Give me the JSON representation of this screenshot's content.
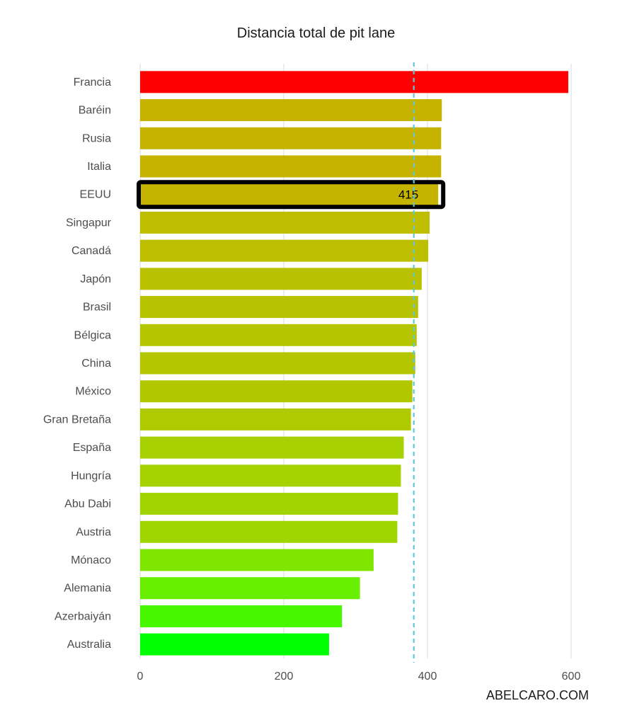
{
  "chart_data": {
    "type": "bar",
    "orientation": "horizontal",
    "title": "Distancia total de pit lane",
    "xlabel": "",
    "ylabel": "",
    "categories": [
      "Francia",
      "Baréin",
      "Rusia",
      "Italia",
      "EEUU",
      "Singapur",
      "Canadá",
      "Japón",
      "Brasil",
      "Bélgica",
      "China",
      "México",
      "Gran Bretaña",
      "España",
      "Hungría",
      "Abu Dabi",
      "Austria",
      "Mónaco",
      "Alemania",
      "Azerbaiyán",
      "Australia"
    ],
    "values": [
      596,
      420,
      419,
      419,
      415,
      403,
      401,
      392,
      387,
      385,
      383,
      379,
      377,
      367,
      363,
      359,
      358,
      325,
      306,
      281,
      263
    ],
    "colors": [
      "#ff0000",
      "#c5b300",
      "#c5b300",
      "#c5b300",
      "#c4b400",
      "#bebd00",
      "#bdbe00",
      "#b9c100",
      "#b7c300",
      "#b5c500",
      "#b4c600",
      "#b1c800",
      "#afca00",
      "#a7d100",
      "#a4d300",
      "#a2d500",
      "#a0d600",
      "#7fe600",
      "#68ef00",
      "#46f700",
      "#00ff00"
    ],
    "highlight": {
      "category": "EEUU",
      "label": "415"
    },
    "reference_line": {
      "value": 381,
      "style": "dashed",
      "color": "#5fc8d6"
    },
    "xlim": [
      0,
      620
    ],
    "xticks": [
      0,
      200,
      400,
      600
    ],
    "grid": true
  },
  "watermark": "ABELCARO.COM"
}
